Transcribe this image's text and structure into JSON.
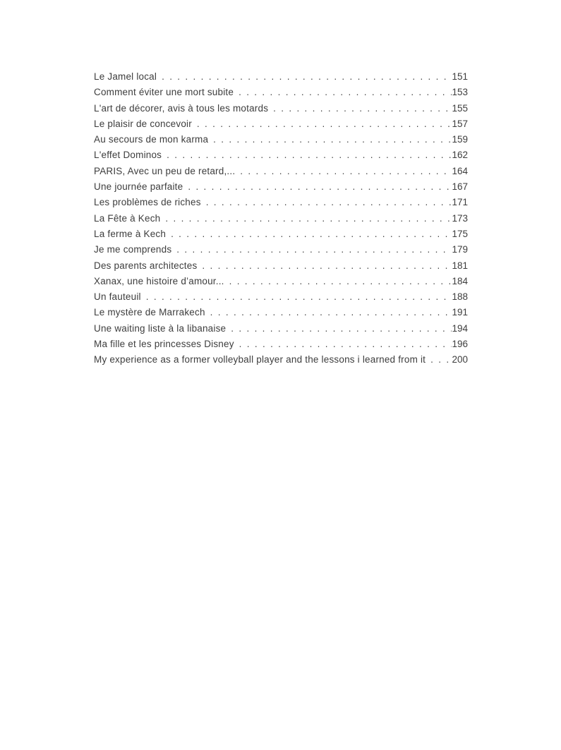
{
  "document": {
    "background": "#ffffff",
    "text_color": "#3d3d3d"
  },
  "toc": {
    "entries": [
      {
        "title": "Le Jamel local",
        "page": "151"
      },
      {
        "title": "Comment éviter une mort subite",
        "page": "153"
      },
      {
        "title": "L'art de décorer, avis à tous les motards",
        "page": "155"
      },
      {
        "title": "Le plaisir de concevoir",
        "page": "157"
      },
      {
        "title": "Au secours de mon karma",
        "page": "159"
      },
      {
        "title": "L'effet Dominos",
        "page": "162"
      },
      {
        "title": "PARIS, Avec un peu de retard,...",
        "page": "164"
      },
      {
        "title": "Une journée parfaite",
        "page": "167"
      },
      {
        "title": "Les problèmes de riches",
        "page": "171"
      },
      {
        "title": "La Fête à Kech",
        "page": "173"
      },
      {
        "title": "La ferme à Kech",
        "page": "175"
      },
      {
        "title": "Je me comprends",
        "page": "179"
      },
      {
        "title": "Des parents architectes",
        "page": "181"
      },
      {
        "title": "Xanax, une histoire d’amour...",
        "page": "184"
      },
      {
        "title": "Un fauteuil",
        "page": "188"
      },
      {
        "title": "Le mystère de Marrakech",
        "page": "191"
      },
      {
        "title": "Une waiting liste à la libanaise",
        "page": "194"
      },
      {
        "title": "Ma fille et les princesses Disney",
        "page": "196"
      },
      {
        "title": "My experience as a former volleyball player and the lessons i learned from it",
        "page": "200"
      }
    ]
  }
}
